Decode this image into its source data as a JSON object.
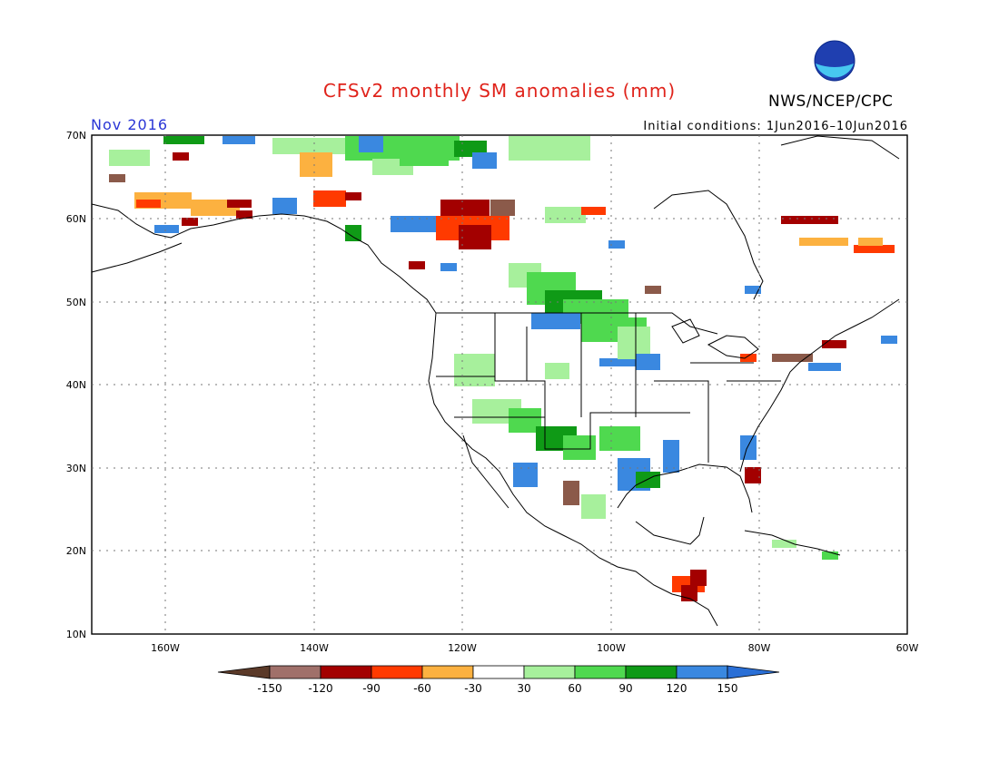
{
  "title": "CFSv2 monthly SM anomalies (mm)",
  "period": "Nov 2016",
  "initial_conditions": "Initial conditions: 1Jun2016–10Jun2016",
  "organization": "NWS/NCEP/CPC",
  "logo_text": "NOAA",
  "map": {
    "lon_range": [
      -170,
      -60
    ],
    "lat_range": [
      10,
      70
    ],
    "grid": "dotted",
    "lat_labels": [
      "70N",
      "60N",
      "50N",
      "40N",
      "30N",
      "20N",
      "10N"
    ],
    "lon_labels": [
      "160W",
      "140W",
      "120W",
      "100W",
      "80W",
      "60W"
    ]
  },
  "legend": {
    "labels": [
      "-150",
      "-120",
      "-90",
      "-60",
      "-30",
      "30",
      "60",
      "90",
      "120",
      "150"
    ],
    "colors": [
      "#5b3a29",
      "#a0706a",
      "#a30000",
      "#ff3a00",
      "#fcb140",
      "#ffffff",
      "#a7f09c",
      "#4fd94f",
      "#0f9a16",
      "#3a88e0",
      "#2a6fd6"
    ]
  },
  "colors": {
    "brown": "#8b5a4a",
    "darkred": "#a30000",
    "red": "#ff3a00",
    "orange": "#fcb140",
    "lightgreen": "#a7f09c",
    "green": "#4fd94f",
    "darkgreen": "#0f9a16",
    "blue": "#3a88e0"
  }
}
